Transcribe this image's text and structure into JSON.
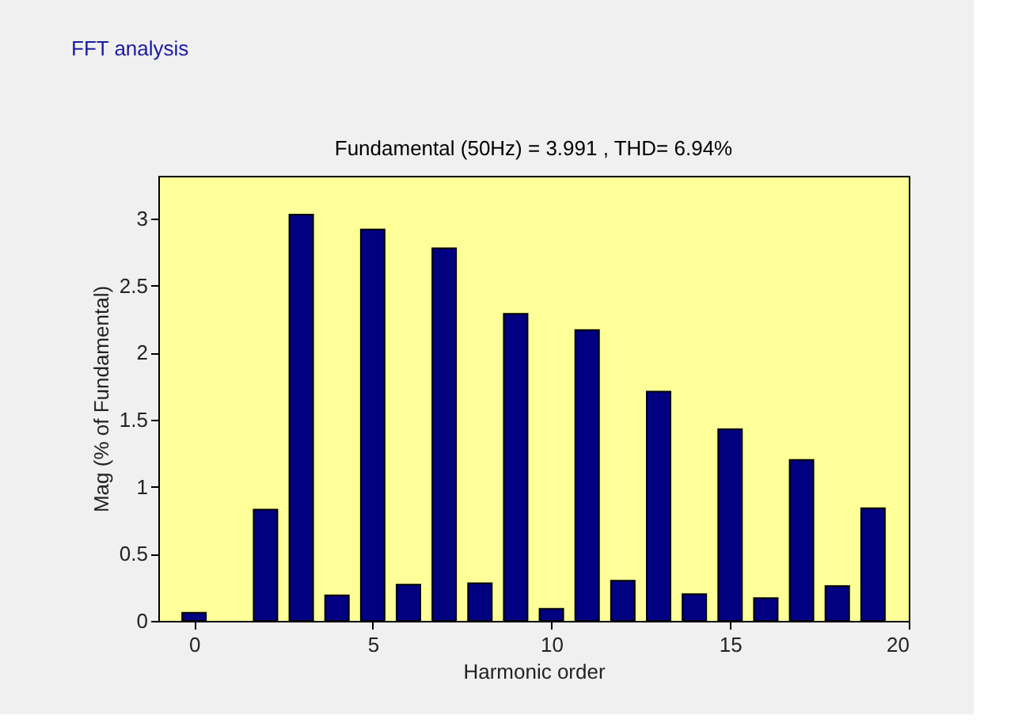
{
  "chart_data": {
    "type": "bar",
    "title": "FFT analysis",
    "subtitle": "Fundamental (50Hz) = 3.991 , THD= 6.94%",
    "xlabel": "Harmonic order",
    "ylabel": "Mag (% of Fundamental)",
    "x": [
      0,
      1,
      2,
      3,
      4,
      5,
      6,
      7,
      8,
      9,
      10,
      11,
      12,
      13,
      14,
      15,
      16,
      17,
      18,
      19
    ],
    "values": [
      0.06,
      null,
      0.83,
      3.03,
      0.19,
      2.92,
      0.27,
      2.78,
      0.28,
      2.29,
      0.09,
      2.17,
      0.3,
      1.71,
      0.2,
      1.43,
      0.17,
      1.2,
      0.26,
      0.84
    ],
    "color": "#000080",
    "xlim": [
      -1,
      20
    ],
    "xticks": [
      0,
      5,
      10,
      15,
      20
    ],
    "ylim": [
      0,
      3.32
    ],
    "yticks": [
      0,
      0.5,
      1,
      1.5,
      2,
      2.5,
      3
    ],
    "grid": false
  }
}
